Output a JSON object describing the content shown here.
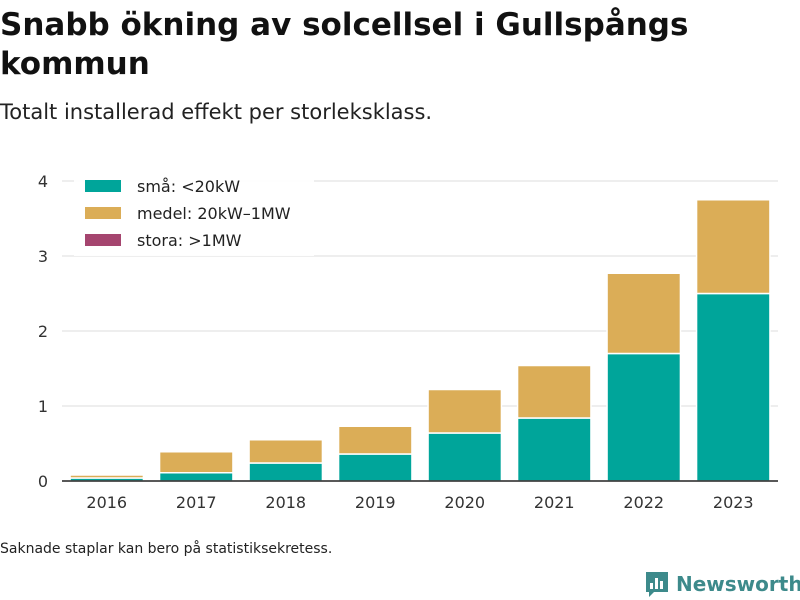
{
  "title": "Snabb ökning av solcellsel i Gullspångs kommun",
  "subtitle": "Totalt installerad effekt per storleksklass.",
  "footnote": "Saknade staplar kan bero på statistiksekretess.",
  "brand": {
    "name": "Newsworthy",
    "icon": "bar-chart-logo-icon",
    "color": "#3d8a8b"
  },
  "chart_data": {
    "type": "bar",
    "stacked": true,
    "categories": [
      "2016",
      "2017",
      "2018",
      "2019",
      "2020",
      "2021",
      "2022",
      "2023"
    ],
    "series": [
      {
        "name": "små: <20kW",
        "color": "#00a59a",
        "values": [
          0.04,
          0.11,
          0.24,
          0.36,
          0.64,
          0.84,
          1.7,
          2.5
        ]
      },
      {
        "name": "medel: 20kW–1MW",
        "color": "#dbad57",
        "values": [
          0.04,
          0.28,
          0.31,
          0.37,
          0.58,
          0.7,
          1.07,
          1.25
        ]
      },
      {
        "name": "stora: >1MW",
        "color": "#a5456f",
        "values": [
          0,
          0,
          0,
          0,
          0,
          0,
          0,
          0
        ]
      }
    ],
    "yticks": [
      0,
      1,
      2,
      3,
      4
    ],
    "ylim": [
      0,
      4
    ],
    "xlabel": "",
    "ylabel": "",
    "grid": true,
    "legend": "top-left"
  }
}
